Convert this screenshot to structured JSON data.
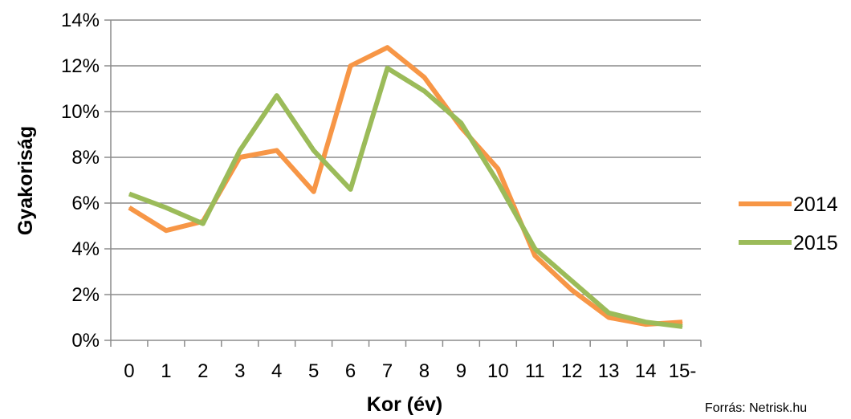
{
  "chart_data": {
    "type": "line",
    "title": "",
    "xlabel": "Kor (év)",
    "ylabel": "Gyakoriság",
    "categories": [
      "0",
      "1",
      "2",
      "3",
      "4",
      "5",
      "6",
      "7",
      "8",
      "9",
      "10",
      "11",
      "12",
      "13",
      "14",
      "15-"
    ],
    "y_ticks": [
      "0%",
      "2%",
      "4%",
      "6%",
      "8%",
      "10%",
      "12%",
      "14%"
    ],
    "ylim": [
      0,
      14
    ],
    "y_unit": "%",
    "grid": "horizontal",
    "legend_position": "right",
    "series": [
      {
        "name": "2014",
        "color": "#F79646",
        "values": [
          5.8,
          4.8,
          5.2,
          8.0,
          8.3,
          6.5,
          12.0,
          12.8,
          11.5,
          9.3,
          7.5,
          3.7,
          2.2,
          1.0,
          0.7,
          0.8
        ]
      },
      {
        "name": "2015",
        "color": "#9BBB59",
        "values": [
          6.4,
          5.8,
          5.1,
          8.3,
          10.7,
          8.3,
          6.6,
          11.9,
          10.9,
          9.5,
          6.9,
          4.0,
          2.6,
          1.2,
          0.8,
          0.6
        ]
      }
    ]
  },
  "source_text": "Forrás: Netrisk.hu"
}
